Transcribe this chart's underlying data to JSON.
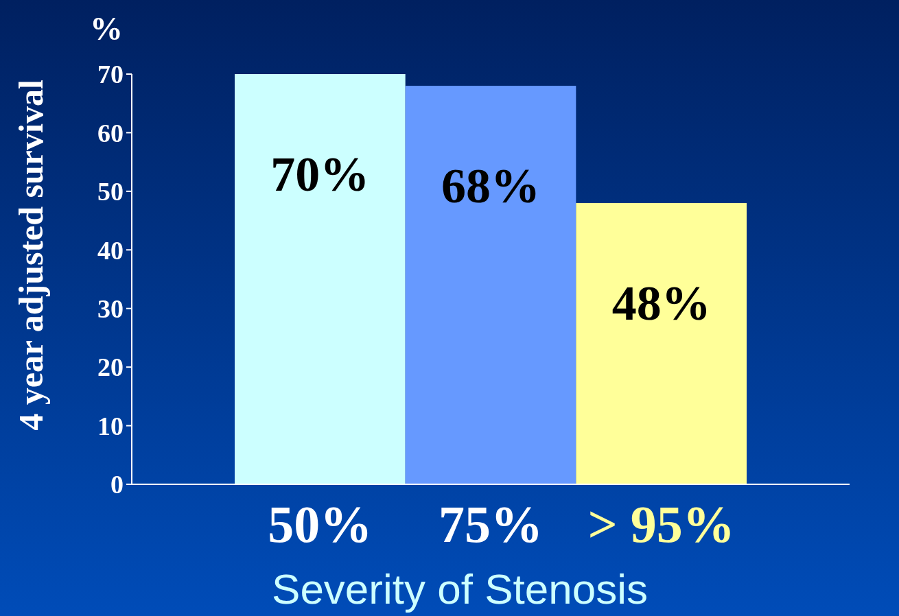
{
  "chart_data": {
    "type": "bar",
    "categories": [
      "50%",
      "75%",
      "> 95%"
    ],
    "values": [
      70,
      68,
      48
    ],
    "colors": [
      "#ccffff",
      "#6699ff",
      "#ffff99"
    ],
    "value_labels": [
      "70%",
      "68%",
      "48%"
    ],
    "ylim": [
      0,
      70
    ],
    "yticks": [
      0,
      10,
      20,
      30,
      40,
      50,
      60,
      70
    ],
    "ylabel": "4 year adjusted survival",
    "xlabel": "Severity of Stenosis",
    "annotations": [
      "%"
    ]
  }
}
